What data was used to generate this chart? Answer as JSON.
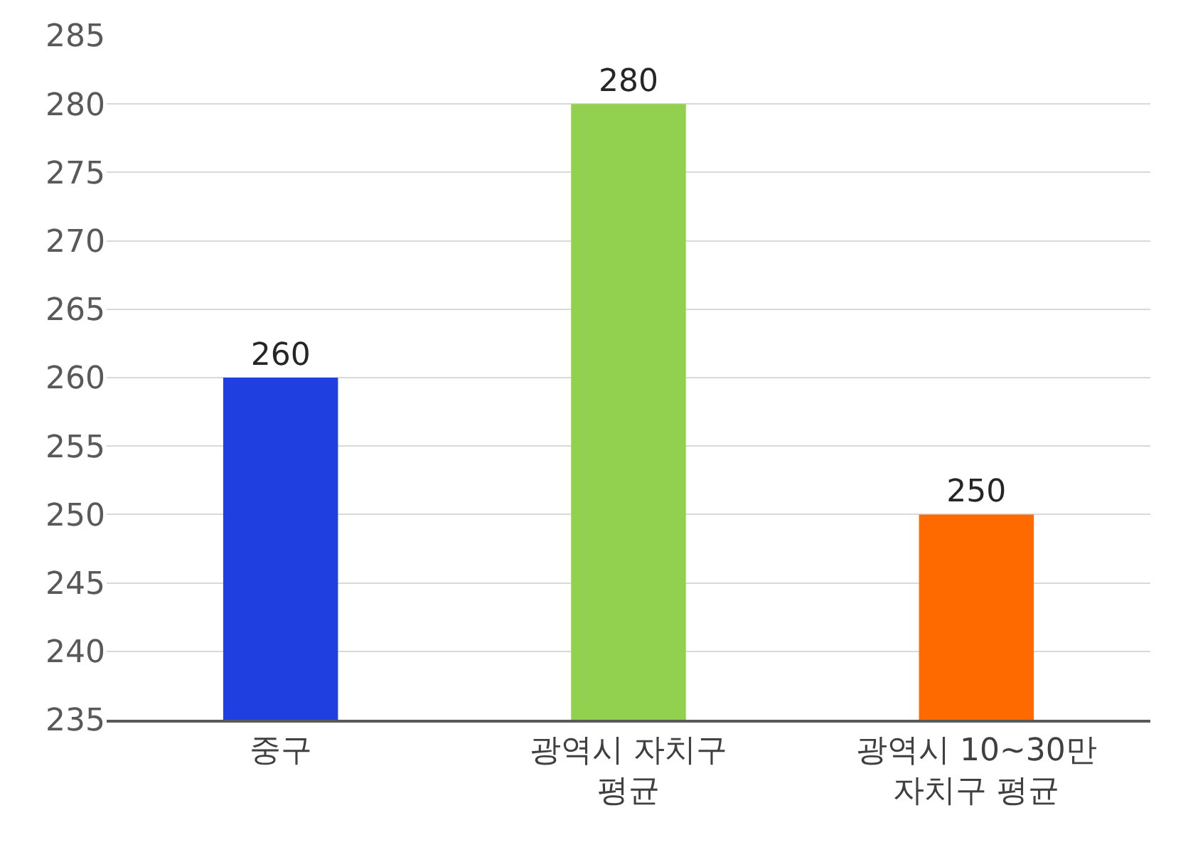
{
  "chart_data": {
    "type": "bar",
    "categories": [
      "중구",
      "광역시 자치구 평균",
      "광역시 10~30만 자치구 평균"
    ],
    "values": [
      260,
      280,
      250
    ],
    "colors": [
      "#1f3fe0",
      "#92d050",
      "#ff6a00"
    ],
    "ylim": [
      235,
      285
    ],
    "yticks": [
      235,
      240,
      245,
      250,
      255,
      260,
      265,
      270,
      275,
      280,
      285
    ],
    "grid": "y",
    "legend": false,
    "data_labels": true
  }
}
